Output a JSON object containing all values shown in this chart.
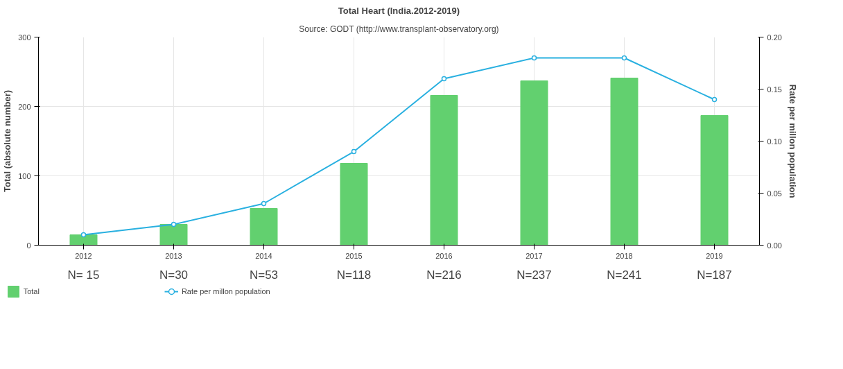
{
  "chart_data": {
    "type": "bar",
    "title": "Total Heart (India.2012-2019)",
    "subtitle": "Source: GODT (http://www.transplant-observatory.org)",
    "ylabel": "Total (absolute number)",
    "y2label": "Rate per millon population",
    "categories": [
      "2012",
      "2013",
      "2014",
      "2015",
      "2016",
      "2017",
      "2018",
      "2019"
    ],
    "series": [
      {
        "name": "Total",
        "type": "bar",
        "color": "#62d06f",
        "values": [
          15,
          30,
          53,
          118,
          216,
          237,
          241,
          187
        ],
        "value_labels": [
          "N= 15",
          "N=30",
          "N=53",
          "N=118",
          "N=216",
          "N=237",
          "N=241",
          "N=187"
        ]
      },
      {
        "name": "Rate per millon population",
        "type": "line",
        "axis": "y2",
        "color": "#29b0e0",
        "marker": "circle",
        "values": [
          0.01,
          0.02,
          0.04,
          0.09,
          0.16,
          0.18,
          0.18,
          0.14
        ]
      }
    ],
    "ylim": [
      0,
      300
    ],
    "yticks": [
      0,
      100,
      200,
      300
    ],
    "y2lim": [
      0,
      0.2
    ],
    "y2ticks": [
      {
        "value": 0,
        "label": "0.00"
      },
      {
        "value": 0.05,
        "label": "0.05"
      },
      {
        "value": 0.1,
        "label": "0.10"
      },
      {
        "value": 0.15,
        "label": "0.15"
      },
      {
        "value": 0.2,
        "label": "0.20"
      }
    ],
    "grid": true,
    "legend": "bottom left"
  }
}
